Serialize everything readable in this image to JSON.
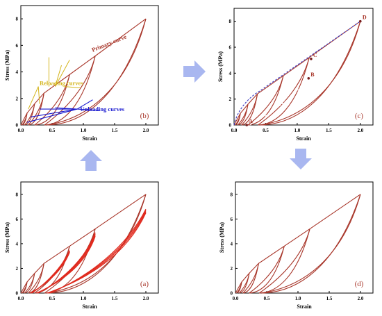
{
  "colors": {
    "curve": "#a8362a",
    "curve_bright": "#e02a1e",
    "reload_arrow": "#d4b41a",
    "unload_arrow": "#1a1ad0",
    "dash": "#3a3ac0",
    "big_arrow": "#a9b7f0"
  },
  "chart_data": [
    {
      "id": "a",
      "type": "line",
      "panel_label": "(a)",
      "xlabel": "Strain",
      "ylabel": "Stress (MPa)",
      "xlim": [
        0,
        2.2
      ],
      "ylim": [
        0,
        9
      ],
      "xticks": [
        "0.0",
        "0.5",
        "1.0",
        "1.5",
        "2.0"
      ],
      "yticks": [
        "0",
        "2",
        "4",
        "6",
        "8"
      ],
      "description_of_data": "repeated loading-unloading cycles",
      "cycles": [
        {
          "peak": [
            0.1,
            0.9
          ],
          "residual": 0.02
        },
        {
          "peak": [
            0.22,
            1.6
          ],
          "residual": 0.06
        },
        {
          "peak": [
            0.37,
            2.4
          ],
          "residual": 0.12
        },
        {
          "peak": [
            0.78,
            3.8
          ],
          "residual": 0.22
        },
        {
          "peak": [
            1.19,
            5.2
          ],
          "residual": 0.38
        },
        {
          "peak": [
            2.0,
            8.0
          ],
          "residual": 0.42
        }
      ]
    },
    {
      "id": "b",
      "type": "line",
      "panel_label": "(b)",
      "xlabel": "Strain",
      "ylabel": "Stress (MPa)",
      "xlim": [
        0,
        2.2
      ],
      "ylim": [
        0,
        9
      ],
      "xticks": [
        "0.0",
        "0.5",
        "1.0",
        "1.5",
        "2.0"
      ],
      "yticks": [
        "0",
        "2",
        "4",
        "6",
        "8"
      ],
      "annotations": {
        "primary": "Primary curve",
        "reloading": "Reloading curves",
        "unloading": "Unloading curves"
      },
      "cycles": [
        {
          "peak": [
            0.1,
            0.9
          ],
          "residual": 0.02
        },
        {
          "peak": [
            0.22,
            1.6
          ],
          "residual": 0.06
        },
        {
          "peak": [
            0.37,
            2.4
          ],
          "residual": 0.12
        },
        {
          "peak": [
            0.78,
            3.8
          ],
          "residual": 0.22
        },
        {
          "peak": [
            1.19,
            5.2
          ],
          "residual": 0.38
        },
        {
          "peak": [
            2.0,
            8.0
          ],
          "residual": 0.42
        }
      ]
    },
    {
      "id": "c",
      "type": "line",
      "panel_label": "(c)",
      "xlabel": "Strain",
      "ylabel": "Stress (MPa)",
      "xlim": [
        0,
        2.2
      ],
      "ylim": [
        0,
        9
      ],
      "xticks": [
        "0.0",
        "0.5",
        "1.0",
        "1.5",
        "2.0"
      ],
      "yticks": [
        "0",
        "2",
        "4",
        "6",
        "8"
      ],
      "points": [
        {
          "label": "A",
          "x": 0.2,
          "y": 0.0
        },
        {
          "label": "B",
          "x": 1.18,
          "y": 3.6
        },
        {
          "label": "C",
          "x": 1.22,
          "y": 5.1
        },
        {
          "label": "D",
          "x": 2.0,
          "y": 8.0
        }
      ],
      "cycles": [
        {
          "peak": [
            0.1,
            0.9
          ],
          "residual": 0.02
        },
        {
          "peak": [
            0.22,
            1.6
          ],
          "residual": 0.06
        },
        {
          "peak": [
            0.37,
            2.4
          ],
          "residual": 0.12
        },
        {
          "peak": [
            0.78,
            3.8
          ],
          "residual": 0.22
        },
        {
          "peak": [
            1.19,
            5.2
          ],
          "residual": 0.38
        },
        {
          "peak": [
            2.0,
            8.0
          ],
          "residual": 0.42
        }
      ]
    },
    {
      "id": "d",
      "type": "line",
      "panel_label": "(d)",
      "xlabel": "Strain",
      "ylabel": "Stress (MPa)",
      "xlim": [
        0,
        2.2
      ],
      "ylim": [
        0,
        9
      ],
      "xticks": [
        "0.0",
        "0.5",
        "1.0",
        "1.5",
        "2.0"
      ],
      "yticks": [
        "0",
        "2",
        "4",
        "6",
        "8"
      ],
      "cycles": [
        {
          "peak": [
            0.1,
            0.9
          ],
          "residual": 0.02
        },
        {
          "peak": [
            0.22,
            1.6
          ],
          "residual": 0.06
        },
        {
          "peak": [
            0.37,
            2.4
          ],
          "residual": 0.12
        },
        {
          "peak": [
            0.78,
            3.8
          ],
          "residual": 0.22
        },
        {
          "peak": [
            1.19,
            5.2
          ],
          "residual": 0.38
        },
        {
          "peak": [
            2.0,
            8.0
          ],
          "residual": 0.42
        }
      ]
    }
  ]
}
